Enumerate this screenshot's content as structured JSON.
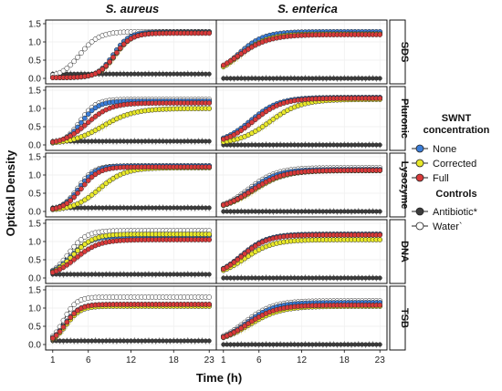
{
  "figure": {
    "ylabel": "Optical Density",
    "xlabel": "Time (h)",
    "columns": [
      "S. aureus",
      "S. enterica"
    ],
    "rows": [
      "SDS",
      "Pluronic",
      "Lysozyme",
      "DNA",
      "TSB"
    ],
    "x_ticks": [
      "1",
      "6",
      "12",
      "18",
      "23"
    ],
    "y_ticks": [
      "0.0",
      "0.5",
      "1.0",
      "1.5"
    ],
    "legend": {
      "title_line1": "SWNT",
      "title_line2": "concentration",
      "items": [
        {
          "label": "None",
          "color": "#3b7dd8"
        },
        {
          "label": "Corrected",
          "color": "#e8e82a"
        },
        {
          "label": "Full",
          "color": "#d93a3a"
        }
      ],
      "controls_title": "Controls",
      "controls": [
        {
          "label": "Antibiotic*",
          "color": "#3c3c3c"
        },
        {
          "label": "Water`",
          "color": "#ffffff"
        }
      ]
    }
  },
  "chart_data": {
    "type": "scatter",
    "title": "",
    "xlabel": "Time (h)",
    "ylabel": "Optical Density",
    "xlim": [
      0,
      24
    ],
    "ylim": [
      -0.15,
      1.6
    ],
    "x_ticks": [
      1,
      6,
      12,
      18,
      23
    ],
    "y_ticks": [
      0.0,
      0.5,
      1.0,
      1.5
    ],
    "grid": true,
    "legend_position": "right",
    "series_colors": {
      "None": "#3b7dd8",
      "Corrected": "#e8e82a",
      "Full": "#d93a3a",
      "Antibiotic*": "#3c3c3c",
      "Water`": "#ffffff"
    },
    "panels": [
      {
        "row": "SDS",
        "column": "S. aureus",
        "growth": {
          "Water`": {
            "max": 1.28,
            "mid": 4.8,
            "rate": 0.75
          },
          "None": {
            "max": 1.27,
            "mid": 9.5,
            "rate": 0.9
          },
          "Corrected": {
            "max": 1.25,
            "mid": 9.8,
            "rate": 0.85
          },
          "Full": {
            "max": 1.24,
            "mid": 9.7,
            "rate": 0.85
          },
          "Antibiotic*": {
            "level": 0.12
          }
        }
      },
      {
        "row": "SDS",
        "column": "S. enterica",
        "growth": {
          "Water`": {
            "max": 1.25,
            "mid": 3.0,
            "rate": 0.55
          },
          "None": {
            "max": 1.28,
            "mid": 3.0,
            "rate": 0.55
          },
          "Corrected": {
            "max": 1.22,
            "mid": 3.2,
            "rate": 0.5
          },
          "Full": {
            "max": 1.2,
            "mid": 3.0,
            "rate": 0.45
          },
          "Antibiotic*": {
            "level": 0.0
          }
        }
      },
      {
        "row": "Pluronic",
        "column": "S. aureus",
        "growth": {
          "Water`": {
            "max": 1.25,
            "mid": 4.8,
            "rate": 0.9
          },
          "None": {
            "max": 1.2,
            "mid": 5.0,
            "rate": 0.85
          },
          "Corrected": {
            "max": 1.0,
            "mid": 8.0,
            "rate": 0.45
          },
          "Full": {
            "max": 1.15,
            "mid": 5.8,
            "rate": 0.6
          },
          "Antibiotic*": {
            "level": 0.1
          }
        }
      },
      {
        "row": "Pluronic",
        "column": "S. enterica",
        "growth": {
          "Water`": {
            "max": 1.3,
            "mid": 5.0,
            "rate": 0.5
          },
          "None": {
            "max": 1.3,
            "mid": 4.8,
            "rate": 0.5
          },
          "Corrected": {
            "max": 1.25,
            "mid": 7.5,
            "rate": 0.45
          },
          "Full": {
            "max": 1.28,
            "mid": 5.2,
            "rate": 0.5
          },
          "Antibiotic*": {
            "level": 0.0
          }
        }
      },
      {
        "row": "Lysozyme",
        "column": "S. aureus",
        "growth": {
          "Water`": {
            "max": 1.25,
            "mid": 4.5,
            "rate": 0.9
          },
          "None": {
            "max": 1.25,
            "mid": 4.7,
            "rate": 0.85
          },
          "Corrected": {
            "max": 1.2,
            "mid": 7.5,
            "rate": 0.55
          },
          "Full": {
            "max": 1.22,
            "mid": 5.0,
            "rate": 0.8
          },
          "Antibiotic*": {
            "level": 0.1
          }
        }
      },
      {
        "row": "Lysozyme",
        "column": "S. enterica",
        "growth": {
          "Water`": {
            "max": 1.2,
            "mid": 4.5,
            "rate": 0.5
          },
          "None": {
            "max": 1.15,
            "mid": 4.7,
            "rate": 0.5
          },
          "Corrected": {
            "max": 1.12,
            "mid": 5.2,
            "rate": 0.45
          },
          "Full": {
            "max": 1.13,
            "mid": 5.0,
            "rate": 0.45
          },
          "Antibiotic*": {
            "level": 0.0
          }
        }
      },
      {
        "row": "DNA",
        "column": "S. aureus",
        "growth": {
          "Water`": {
            "max": 1.3,
            "mid": 3.2,
            "rate": 0.8
          },
          "None": {
            "max": 1.15,
            "mid": 3.5,
            "rate": 0.7
          },
          "Corrected": {
            "max": 1.2,
            "mid": 3.8,
            "rate": 0.7
          },
          "Full": {
            "max": 1.05,
            "mid": 4.2,
            "rate": 0.6
          },
          "Antibiotic*": {
            "level": 0.1
          }
        }
      },
      {
        "row": "DNA",
        "column": "S. enterica",
        "growth": {
          "Water`": {
            "max": 1.2,
            "mid": 3.5,
            "rate": 0.55
          },
          "None": {
            "max": 1.2,
            "mid": 3.5,
            "rate": 0.55
          },
          "Corrected": {
            "max": 1.05,
            "mid": 4.0,
            "rate": 0.5
          },
          "Full": {
            "max": 1.18,
            "mid": 3.6,
            "rate": 0.55
          },
          "Antibiotic*": {
            "level": 0.0
          }
        }
      },
      {
        "row": "TSB",
        "column": "S. aureus",
        "growth": {
          "Water`": {
            "max": 1.3,
            "mid": 2.5,
            "rate": 1.1
          },
          "None": {
            "max": 1.1,
            "mid": 2.7,
            "rate": 1.0
          },
          "Corrected": {
            "max": 1.05,
            "mid": 2.9,
            "rate": 1.0
          },
          "Full": {
            "max": 1.1,
            "mid": 2.8,
            "rate": 1.0
          },
          "Antibiotic*": {
            "level": 0.1
          }
        }
      },
      {
        "row": "TSB",
        "column": "S. enterica",
        "growth": {
          "Water`": {
            "max": 1.2,
            "mid": 4.0,
            "rate": 0.5
          },
          "None": {
            "max": 1.15,
            "mid": 4.2,
            "rate": 0.5
          },
          "Corrected": {
            "max": 1.05,
            "mid": 4.6,
            "rate": 0.45
          },
          "Full": {
            "max": 1.08,
            "mid": 4.3,
            "rate": 0.48
          },
          "Antibiotic*": {
            "level": 0.0
          }
        }
      }
    ]
  }
}
